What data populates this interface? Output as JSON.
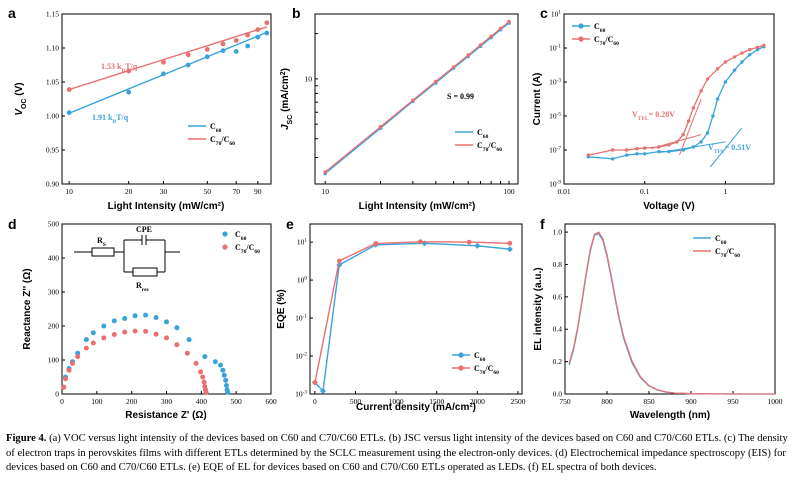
{
  "colors": {
    "c60": "#3aa3dc",
    "c70": "#e8706f"
  },
  "caption": {
    "fig_label": "Figure 4.",
    "text": "(a) VOC versus light intensity of the devices based on C60 and C70/C60 ETLs. (b) JSC versus light intensity of the devices based on C60 and C70/C60 ETLs. (c) The density of electron traps in perovskites films with different ETLs determined by the SCLC measurement using the electron-only devices. (d) Electrochemical impedance spectroscopy (EIS) for devices based on C60 and C70/C60 ETLs. (e) EQE of EL for devices based on C60 and C70/C60 ETLs operated as LEDs. (f) EL spectra of both devices."
  },
  "chart_data": [
    {
      "panel": "a",
      "type": "scatter",
      "xlabel": "Light Intensity (mW/cm²)",
      "ylabel": "VOC (V)",
      "x_scale": "log",
      "xlim": [
        10,
        100
      ],
      "ylim": [
        0.9,
        1.15
      ],
      "x_ticks": [
        10,
        20,
        30,
        50,
        70,
        90
      ],
      "x_tick_labels": [
        "10",
        "20",
        "30",
        "50",
        "70",
        "90"
      ],
      "y_ticks": [
        0.9,
        0.95,
        1.0,
        1.05,
        1.1,
        1.15
      ],
      "y_tick_labels": [
        "0.90",
        "0.95",
        "1.00",
        "1.05",
        "1.10",
        "1.15"
      ],
      "series": [
        {
          "name": "C60",
          "color_key": "c60",
          "x": [
            10,
            20,
            30,
            40,
            50,
            60,
            70,
            80,
            90,
            100
          ],
          "y": [
            1.005,
            1.035,
            1.062,
            1.075,
            1.087,
            1.096,
            1.095,
            1.103,
            1.116,
            1.122
          ],
          "fit": [
            [
              10,
              1.004
            ],
            [
              100,
              1.123
            ]
          ]
        },
        {
          "name": "C70/C60",
          "color_key": "c70",
          "x": [
            10,
            20,
            30,
            40,
            50,
            60,
            70,
            80,
            90,
            100
          ],
          "y": [
            1.039,
            1.066,
            1.079,
            1.09,
            1.098,
            1.106,
            1.111,
            1.119,
            1.127,
            1.137
          ],
          "fit": [
            [
              10,
              1.039
            ],
            [
              100,
              1.131
            ]
          ]
        }
      ],
      "annotations": [
        {
          "text": "1.53 kBT/q",
          "color_key": "c70"
        },
        {
          "text": "1.91 kBT/q",
          "color_key": "c60"
        }
      ]
    },
    {
      "panel": "b",
      "type": "line",
      "xlabel": "Light Intensity (mW/cm²)",
      "ylabel": "JSC (mA/cm²)",
      "x_scale": "log",
      "y_scale": "log",
      "xlim": [
        10,
        100
      ],
      "ylim": [
        2,
        25
      ],
      "x_tick_labels": [
        "10",
        "100"
      ],
      "y_tick_labels": [
        "10"
      ],
      "series": [
        {
          "name": "C60",
          "color_key": "c60",
          "x": [
            10,
            20,
            30,
            40,
            50,
            60,
            70,
            80,
            90,
            100
          ],
          "y": [
            2.35,
            4.7,
            7.1,
            9.4,
            11.8,
            14.1,
            16.5,
            18.8,
            21.2,
            23.5
          ]
        },
        {
          "name": "C70/C60",
          "color_key": "c70",
          "x": [
            10,
            20,
            30,
            40,
            50,
            60,
            70,
            80,
            90,
            100
          ],
          "y": [
            2.4,
            4.8,
            7.2,
            9.6,
            12.0,
            14.4,
            16.8,
            19.2,
            21.6,
            24.0
          ]
        }
      ],
      "annotations": [
        {
          "text": "S = 0.99"
        }
      ]
    },
    {
      "panel": "c",
      "type": "line",
      "xlabel": "Voltage (V)",
      "ylabel": "Current (A)",
      "x_scale": "log",
      "y_scale": "log",
      "xlim": [
        0.01,
        4
      ],
      "ylim": [
        1e-09,
        10
      ],
      "x_tick_labels": [
        "0.01",
        "0.1",
        "1"
      ],
      "y_tick_labels": [
        "10¹",
        "10⁻¹",
        "10⁻³",
        "10⁻⁵",
        "10⁻⁷",
        "10⁻⁹"
      ],
      "series": [
        {
          "name": "C60",
          "color_key": "c60",
          "x": [
            0.02,
            0.04,
            0.06,
            0.08,
            0.1,
            0.15,
            0.2,
            0.3,
            0.4,
            0.5,
            0.6,
            0.7,
            0.8,
            1.0,
            1.3,
            1.6,
            2.0,
            2.5,
            3.0
          ],
          "y": [
            4e-08,
            3e-08,
            5e-08,
            6e-08,
            6e-08,
            8e-08,
            8e-08,
            1e-07,
            1.5e-07,
            3e-07,
            1e-06,
            1e-05,
            0.0001,
            0.001,
            0.005,
            0.015,
            0.04,
            0.08,
            0.12
          ]
        },
        {
          "name": "C70/C60",
          "color_key": "c70",
          "x": [
            0.02,
            0.04,
            0.06,
            0.08,
            0.1,
            0.15,
            0.2,
            0.25,
            0.3,
            0.35,
            0.4,
            0.5,
            0.6,
            0.8,
            1.0,
            1.3,
            1.6,
            2.0,
            2.5,
            3.0
          ],
          "y": [
            5e-08,
            1e-07,
            1e-07,
            1.2e-07,
            1.3e-07,
            1.5e-07,
            2e-07,
            3e-07,
            8e-07,
            5e-06,
            3e-05,
            0.0003,
            0.0015,
            0.006,
            0.015,
            0.03,
            0.05,
            0.08,
            0.11,
            0.14
          ]
        }
      ],
      "fit_lines": [
        {
          "color_key": "c70",
          "x": [
            0.12,
            0.5
          ],
          "y": [
            1.2e-07,
            8e-07
          ]
        },
        {
          "color_key": "c70",
          "x": [
            0.27,
            0.5
          ],
          "y": [
            5e-08,
            0.0001
          ]
        },
        {
          "color_key": "c60",
          "x": [
            0.15,
            1.0
          ],
          "y": [
            7e-08,
            3e-07
          ]
        },
        {
          "color_key": "c60",
          "x": [
            0.65,
            1.6
          ],
          "y": [
            1e-08,
            2e-06
          ]
        }
      ],
      "annotations": [
        {
          "text": "VTFL= 0.28V",
          "color_key": "c70"
        },
        {
          "text": "VTFL= 0.51V",
          "color_key": "c60"
        }
      ]
    },
    {
      "panel": "d",
      "type": "scatter",
      "xlabel": "Resistance Z' (Ω)",
      "ylabel": "Reactance Z'' (Ω)",
      "xlim": [
        0,
        600
      ],
      "ylim": [
        0,
        500
      ],
      "x_ticks": [
        0,
        100,
        200,
        300,
        400,
        500,
        600
      ],
      "y_ticks": [
        0,
        100,
        200,
        300,
        400,
        500
      ],
      "series": [
        {
          "name": "C60",
          "color_key": "c60",
          "x": [
            5,
            10,
            20,
            30,
            45,
            70,
            90,
            120,
            150,
            180,
            210,
            240,
            270,
            300,
            330,
            365,
            410,
            440,
            455,
            462,
            466,
            470,
            472,
            474,
            476
          ],
          "y": [
            20,
            50,
            75,
            95,
            120,
            160,
            180,
            200,
            215,
            222,
            230,
            232,
            225,
            212,
            195,
            160,
            110,
            95,
            85,
            70,
            55,
            40,
            25,
            12,
            5
          ]
        },
        {
          "name": "C70/C60",
          "color_key": "c70",
          "x": [
            5,
            10,
            20,
            30,
            45,
            70,
            90,
            120,
            150,
            180,
            210,
            240,
            270,
            300,
            330,
            360,
            385,
            398,
            404,
            408,
            410,
            412,
            414
          ],
          "y": [
            20,
            45,
            70,
            90,
            110,
            135,
            150,
            165,
            175,
            182,
            185,
            184,
            176,
            165,
            145,
            120,
            90,
            65,
            50,
            35,
            22,
            12,
            4
          ]
        }
      ],
      "inset_labels": {
        "rs": "RS",
        "cpe": "CPE",
        "rrec": "Rrec"
      }
    },
    {
      "panel": "e",
      "type": "line",
      "xlabel": "Current density (mA/cm²)",
      "ylabel": "EQE (%)",
      "y_scale": "log",
      "xlim": [
        0,
        2500
      ],
      "ylim": [
        0.001,
        20
      ],
      "x_ticks": [
        0,
        500,
        1000,
        1500,
        2000,
        2500
      ],
      "y_tick_labels": [
        "10¹",
        "10⁰",
        "10⁻¹",
        "10⁻²",
        "10⁻³"
      ],
      "series": [
        {
          "name": "C60",
          "color_key": "c60",
          "x": [
            0,
            100,
            300,
            750,
            1350,
            2000,
            2400
          ],
          "y": [
            0.002,
            0.0012,
            2.5,
            8.5,
            9.3,
            8.0,
            6.5
          ]
        },
        {
          "name": "C70/C60",
          "color_key": "c70",
          "x": [
            0,
            300,
            750,
            1300,
            1900,
            2400
          ],
          "y": [
            0.002,
            3.2,
            9.2,
            10.2,
            10.0,
            9.3
          ]
        }
      ]
    },
    {
      "panel": "f",
      "type": "line",
      "xlabel": "Wavelength (nm)",
      "ylabel": "EL intensity (a.u.)",
      "xlim": [
        750,
        1000
      ],
      "ylim": [
        0,
        1.05
      ],
      "x_ticks": [
        750,
        800,
        850,
        900,
        950,
        1000
      ],
      "y_ticks": [
        0.0,
        0.2,
        0.4,
        0.6,
        0.8,
        1.0
      ],
      "y_tick_labels": [
        "0.0",
        "0.2",
        "0.4",
        "0.6",
        "0.8",
        "1.0"
      ],
      "series": [
        {
          "name": "C60",
          "color_key": "c60",
          "x": [
            755,
            760,
            765,
            770,
            775,
            780,
            785,
            790,
            795,
            800,
            805,
            810,
            815,
            820,
            830,
            840,
            850,
            860,
            870,
            880,
            900,
            950,
            1000
          ],
          "y": [
            0.18,
            0.27,
            0.4,
            0.56,
            0.73,
            0.88,
            0.98,
            0.99,
            0.95,
            0.85,
            0.72,
            0.58,
            0.45,
            0.34,
            0.19,
            0.1,
            0.05,
            0.025,
            0.012,
            0.006,
            0.002,
            0.0,
            0.0
          ]
        },
        {
          "name": "C70/C60",
          "color_key": "c70",
          "x": [
            755,
            760,
            765,
            770,
            775,
            780,
            785,
            790,
            795,
            800,
            805,
            810,
            815,
            820,
            830,
            840,
            850,
            860,
            870,
            880,
            900,
            950,
            1000
          ],
          "y": [
            0.19,
            0.28,
            0.41,
            0.57,
            0.74,
            0.89,
            0.985,
            1.0,
            0.96,
            0.86,
            0.73,
            0.59,
            0.46,
            0.35,
            0.2,
            0.105,
            0.052,
            0.026,
            0.013,
            0.006,
            0.002,
            0.0,
            0.0
          ]
        }
      ]
    }
  ]
}
